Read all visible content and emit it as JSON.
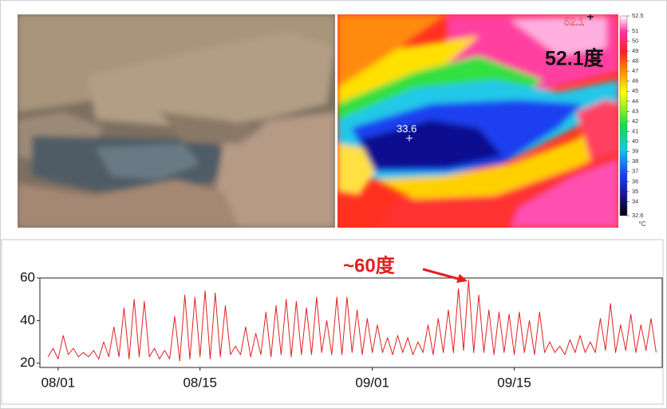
{
  "thermal_image": {
    "max_label": "52.1",
    "max_annotation": "52.1度",
    "spot_label": "33.6",
    "colorbar_ticks": [
      52.5,
      51,
      50,
      49,
      48,
      47,
      46,
      45,
      44,
      43,
      42,
      41,
      40,
      39,
      38,
      37,
      36,
      35,
      34,
      32.6
    ],
    "colorbar_unit": "°C"
  },
  "chart_data": {
    "type": "line",
    "annotation": "~60度",
    "color": "#e02020",
    "x": [
      -1,
      -0.5,
      0,
      0.5,
      1,
      1.5,
      2,
      2.5,
      3,
      3.5,
      4,
      4.5,
      5,
      5.5,
      6,
      6.5,
      7,
      7.5,
      8,
      8.5,
      9,
      9.5,
      10,
      10.5,
      11,
      11.5,
      12,
      12.5,
      13,
      13.5,
      14,
      14.5,
      15,
      15.5,
      16,
      16.5,
      17,
      17.5,
      18,
      18.5,
      19,
      19.5,
      20,
      20.5,
      21,
      21.5,
      22,
      22.5,
      23,
      23.5,
      24,
      24.5,
      25,
      25.5,
      26,
      26.5,
      27,
      27.5,
      28,
      28.5,
      29,
      29.5,
      30,
      30.5,
      31,
      31.5,
      32,
      32.5,
      33,
      33.5,
      34,
      34.5,
      35,
      35.5,
      36,
      36.5,
      37,
      37.5,
      38,
      38.5,
      39,
      39.5,
      40,
      40.5,
      41,
      41.5,
      42,
      42.5,
      43,
      43.5,
      44,
      44.5,
      45,
      45.5,
      46,
      46.5,
      47,
      47.5,
      48,
      48.5,
      49,
      49.5,
      50,
      50.5,
      51,
      51.5,
      52,
      52.5,
      53,
      53.5,
      54,
      54.5,
      55,
      55.5,
      56,
      56.5,
      57,
      57.5,
      58,
      58.5,
      59
    ],
    "values": [
      23,
      27,
      22,
      33,
      24,
      27,
      23,
      25,
      23,
      26,
      22,
      30,
      23,
      37,
      23,
      46,
      22,
      50,
      23,
      49,
      23,
      27,
      22,
      26,
      22,
      42,
      21,
      52,
      22,
      51,
      23,
      54,
      22,
      53,
      23,
      47,
      24,
      28,
      24,
      37,
      23,
      34,
      24,
      44,
      23,
      47,
      24,
      50,
      23,
      49,
      24,
      46,
      24,
      51,
      25,
      40,
      24,
      51,
      24,
      51,
      25,
      45,
      24,
      41,
      25,
      38,
      25,
      32,
      24,
      33,
      25,
      32,
      24,
      30,
      25,
      38,
      24,
      41,
      25,
      45,
      25,
      55,
      26,
      59,
      25,
      52,
      25,
      45,
      24,
      44,
      25,
      43,
      24,
      44,
      25,
      40,
      24,
      44,
      25,
      30,
      25,
      28,
      24,
      31,
      25,
      33,
      25,
      30,
      25,
      41,
      26,
      48,
      25,
      38,
      26,
      43,
      25,
      38,
      26,
      41,
      25
    ],
    "xlim": [
      -1.8,
      59.6
    ],
    "ylim": [
      18,
      60
    ],
    "yticks": [
      20,
      40,
      60
    ],
    "xticks": [
      {
        "value": 0,
        "label": "08/01"
      },
      {
        "value": 14,
        "label": "08/15"
      },
      {
        "value": 31,
        "label": "09/01"
      },
      {
        "value": 45,
        "label": "09/15"
      }
    ]
  }
}
